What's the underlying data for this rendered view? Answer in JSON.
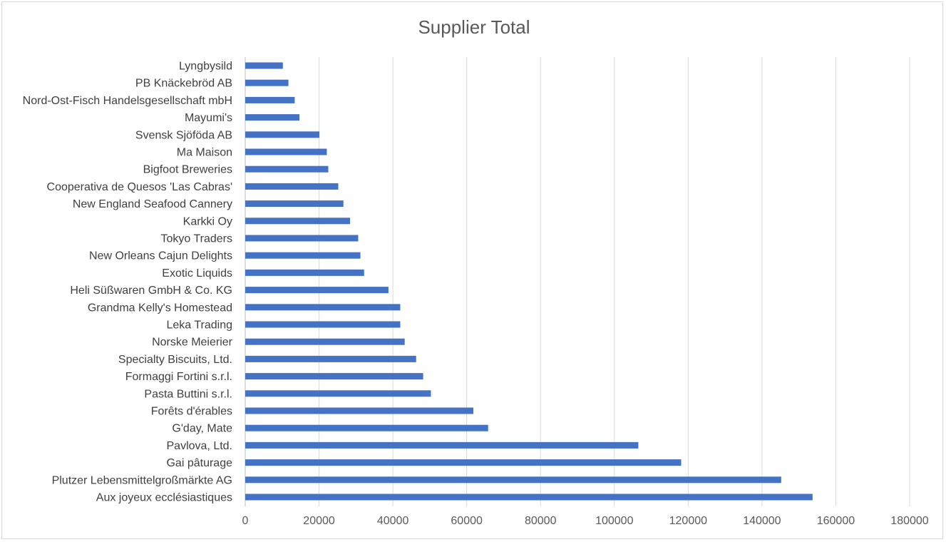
{
  "chart_data": {
    "type": "bar",
    "orientation": "horizontal",
    "title": "Supplier Total",
    "xlabel": "",
    "ylabel": "",
    "xlim": [
      0,
      180000
    ],
    "x_ticks": [
      "0",
      "20000",
      "40000",
      "60000",
      "80000",
      "100000",
      "120000",
      "140000",
      "160000",
      "180000"
    ],
    "grid": "vertical",
    "legend": "none",
    "bar_color": "#4472c4",
    "grid_color": "#d9d9d9",
    "categories": [
      "Lyngbysild",
      "PB Knäckebröd AB",
      "Nord-Ost-Fisch Handelsgesellschaft mbH",
      "Mayumi's",
      "Svensk Sjöföda AB",
      "Ma Maison",
      "Bigfoot Breweries",
      "Cooperativa de Quesos 'Las Cabras'",
      "New England Seafood Cannery",
      "Karkki Oy",
      "Tokyo Traders",
      "New Orleans Cajun Delights",
      "Exotic Liquids",
      "Heli Süßwaren GmbH & Co. KG",
      "Grandma Kelly's Homestead",
      "Leka Trading",
      "Norske Meierier",
      "Specialty Biscuits, Ltd.",
      "Formaggi Fortini s.r.l.",
      "Pasta Buttini s.r.l.",
      "Forêts d'érables",
      "G'day, Mate",
      "Pavlova, Ltd.",
      "Gai pâturage",
      "Plutzer Lebensmittelgroßmärkte AG",
      "Aux joyeux ecclésiastiques"
    ],
    "values": [
      10200,
      11700,
      13400,
      14700,
      20100,
      22100,
      22500,
      25200,
      26600,
      28400,
      30600,
      31200,
      32200,
      38800,
      42000,
      42000,
      43200,
      46300,
      48200,
      50300,
      61800,
      65800,
      106500,
      118100,
      145200,
      153700
    ]
  }
}
